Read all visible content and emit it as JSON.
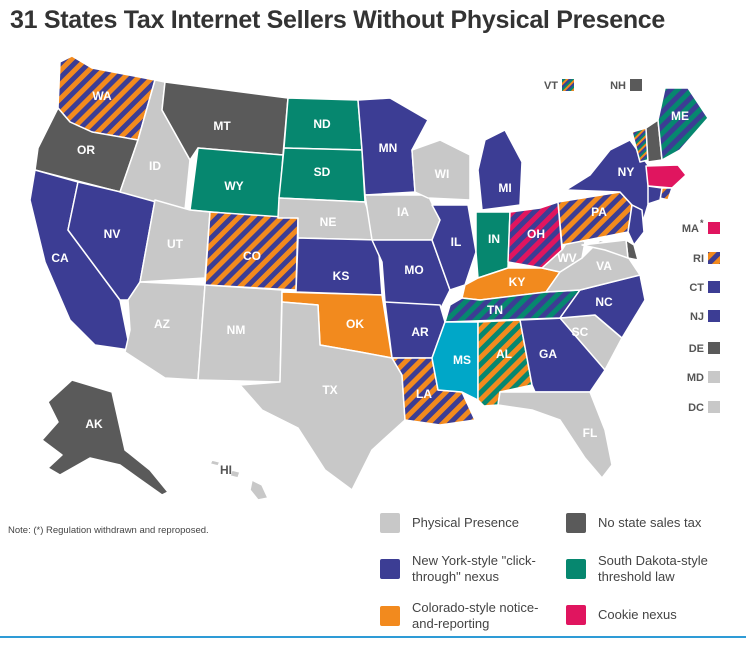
{
  "title": "31 States Tax Internet Sellers Without Physical Presence",
  "note": "Note: (*) Regulation withdrawn and reproposed.",
  "colors": {
    "physical": "#c8c8c8",
    "none": "#5a5a5a",
    "ny": "#3c3d94",
    "sd": "#06876f",
    "co": "#f28a1e",
    "cookie": "#e0155f",
    "ms": "#00a7c8"
  },
  "legend": [
    {
      "key": "physical",
      "label": "Physical Presence"
    },
    {
      "key": "none",
      "label": "No state sales tax"
    },
    {
      "key": "ny",
      "label": "New York-style \"click-through\" nexus"
    },
    {
      "key": "sd",
      "label": "South Dakota-style threshold law"
    },
    {
      "key": "co",
      "label": "Colorado-style notice-and-reporting"
    },
    {
      "key": "cookie",
      "label": "Cookie nexus"
    }
  ],
  "states": {
    "WA": "WA",
    "OR": "OR",
    "CA": "CA",
    "NV": "NV",
    "ID": "ID",
    "MT": "MT",
    "WY": "WY",
    "UT": "UT",
    "AZ": "AZ",
    "CO": "CO",
    "NM": "NM",
    "ND": "ND",
    "SD": "SD",
    "NE": "NE",
    "KS": "KS",
    "OK": "OK",
    "TX": "TX",
    "MN": "MN",
    "IA": "IA",
    "MO": "MO",
    "AR": "AR",
    "LA": "LA",
    "WI": "WI",
    "IL": "IL",
    "MI": "MI",
    "IN": "IN",
    "OH": "OH",
    "KY": "KY",
    "TN": "TN",
    "MS": "MS",
    "AL": "AL",
    "GA": "GA",
    "FL": "FL",
    "SC": "SC",
    "NC": "NC",
    "VA": "VA",
    "WV": "WV",
    "PA": "PA",
    "NY": "NY",
    "ME": "ME",
    "AK": "AK",
    "HI": "HI"
  },
  "side_labels": {
    "VT": "VT",
    "NH": "NH",
    "MA": "MA",
    "MA_mark": "*",
    "RI": "RI",
    "CT": "CT",
    "NJ": "NJ",
    "DE": "DE",
    "MD": "MD",
    "DC": "DC"
  }
}
